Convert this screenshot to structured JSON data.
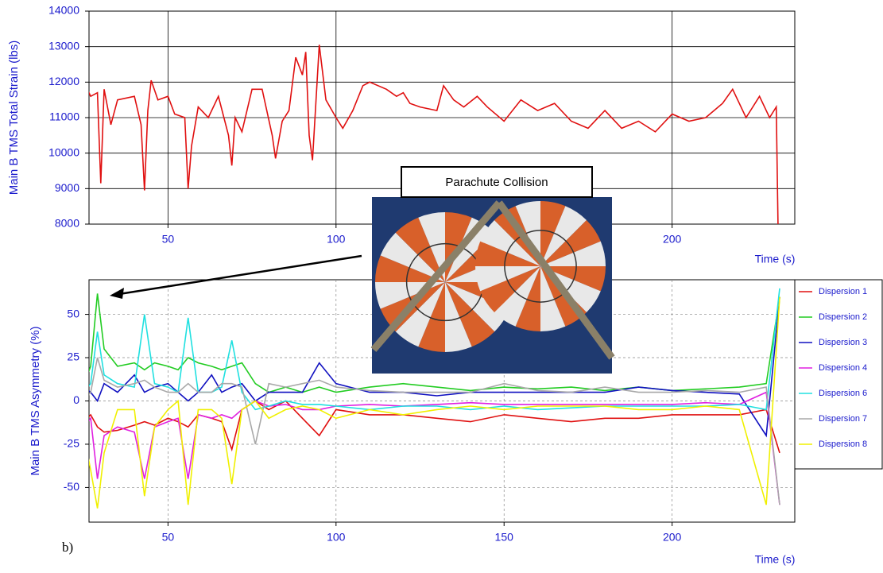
{
  "chart_data": [
    {
      "type": "line",
      "y_label": "Main B TMS Total Strain (lbs)",
      "x_label": "Time (s)",
      "xlim": [
        26.5,
        236.5
      ],
      "xticks": [
        50,
        100,
        200
      ],
      "ylim": [
        8000,
        14000
      ],
      "yticks": [
        8000,
        9000,
        10000,
        11000,
        12000,
        13000,
        14000
      ],
      "grid": true,
      "x": [
        25,
        27,
        29,
        30,
        31,
        33,
        35,
        40,
        42,
        43,
        44,
        45,
        47,
        50,
        52,
        55,
        56,
        57,
        59,
        62,
        65,
        68,
        69,
        70,
        72,
        75,
        78,
        81,
        82,
        84,
        86,
        88,
        90,
        91,
        92,
        93,
        95,
        97,
        100,
        102,
        105,
        108,
        110,
        115,
        118,
        120,
        122,
        125,
        130,
        132,
        135,
        138,
        142,
        145,
        150,
        155,
        160,
        165,
        170,
        175,
        180,
        185,
        190,
        195,
        200,
        205,
        210,
        215,
        218,
        222,
        226,
        229,
        231,
        231.5
      ],
      "series": [
        {
          "name": "Main B TMS Total Strain",
          "color": "#e01010",
          "values": [
            12000,
            11600,
            11700,
            9150,
            11800,
            10800,
            11500,
            11600,
            10800,
            8950,
            11200,
            12050,
            11500,
            11600,
            11100,
            11000,
            9000,
            10200,
            11300,
            11000,
            11600,
            10500,
            9650,
            11000,
            10600,
            11800,
            11800,
            10500,
            9850,
            10900,
            11200,
            12700,
            12200,
            12850,
            10500,
            9800,
            13050,
            11500,
            11000,
            10700,
            11200,
            11900,
            12000,
            11800,
            11600,
            11700,
            11400,
            11300,
            11200,
            11900,
            11500,
            11300,
            11600,
            11300,
            10900,
            11500,
            11200,
            11400,
            10900,
            10700,
            11200,
            10700,
            10900,
            10600,
            11100,
            10900,
            11000,
            11400,
            11800,
            11000,
            11600,
            11000,
            11300,
            8000
          ]
        }
      ]
    },
    {
      "type": "line",
      "y_label": "Main B TMS Asymmetry (%)",
      "x_label": "Time (s)",
      "annotations": [
        "Parachute Collision",
        "b)"
      ],
      "xlim": [
        26.5,
        236.5
      ],
      "xticks": [
        50,
        100,
        150,
        200
      ],
      "ylim": [
        -70,
        70
      ],
      "yticks": [
        -50,
        -25,
        0,
        25,
        50
      ],
      "grid": true,
      "x": [
        25,
        27,
        29,
        31,
        35,
        40,
        43,
        46,
        50,
        53,
        56,
        59,
        63,
        66,
        69,
        72,
        76,
        80,
        85,
        90,
        95,
        100,
        110,
        120,
        130,
        140,
        150,
        160,
        170,
        180,
        190,
        200,
        210,
        220,
        228,
        232
      ],
      "series": [
        {
          "name": "Dispersion 1",
          "color": "#e01010",
          "values": [
            -12,
            -8,
            -15,
            -18,
            -17,
            -14,
            -12,
            -14,
            -10,
            -12,
            -15,
            -8,
            -10,
            -12,
            -28,
            -5,
            0,
            -5,
            0,
            -10,
            -20,
            -5,
            -8,
            -8,
            -10,
            -12,
            -8,
            -10,
            -12,
            -10,
            -10,
            -8,
            -8,
            -8,
            -5,
            -30
          ]
        },
        {
          "name": "Dispersion 2",
          "color": "#22cc22",
          "values": [
            10,
            20,
            62,
            30,
            20,
            22,
            18,
            22,
            20,
            18,
            25,
            22,
            20,
            18,
            20,
            22,
            10,
            5,
            8,
            5,
            8,
            5,
            8,
            10,
            8,
            6,
            8,
            7,
            8,
            6,
            8,
            6,
            7,
            8,
            10,
            60
          ]
        },
        {
          "name": "Dispersion 3",
          "color": "#1010c0",
          "values": [
            8,
            5,
            0,
            10,
            5,
            15,
            5,
            8,
            10,
            5,
            0,
            5,
            15,
            5,
            8,
            10,
            0,
            5,
            5,
            5,
            22,
            10,
            5,
            5,
            3,
            5,
            5,
            5,
            5,
            5,
            8,
            6,
            5,
            4,
            -20,
            60
          ]
        },
        {
          "name": "Dispersion 4",
          "color": "#e020e0",
          "values": [
            -15,
            -10,
            -45,
            -20,
            -15,
            -18,
            -45,
            -15,
            -12,
            -10,
            -45,
            -8,
            -10,
            -8,
            -10,
            -5,
            0,
            -3,
            -2,
            -5,
            -5,
            -3,
            -2,
            -3,
            -2,
            -1,
            -2,
            -2,
            -2,
            -2,
            -2,
            -2,
            -1,
            -2,
            5,
            -60
          ]
        },
        {
          "name": "Dispersion 6",
          "color": "#20e0e0",
          "values": [
            5,
            10,
            40,
            15,
            10,
            8,
            50,
            10,
            8,
            5,
            48,
            5,
            5,
            8,
            35,
            5,
            -5,
            -3,
            0,
            -2,
            -2,
            -3,
            -5,
            -3,
            -3,
            -5,
            -3,
            -5,
            -4,
            -3,
            -3,
            -3,
            -3,
            -2,
            -5,
            65
          ]
        },
        {
          "name": "Dispersion 7",
          "color": "#a8a8a8",
          "values": [
            0,
            5,
            25,
            12,
            8,
            10,
            12,
            8,
            5,
            5,
            10,
            5,
            5,
            10,
            10,
            8,
            -25,
            10,
            8,
            10,
            12,
            8,
            6,
            5,
            5,
            5,
            10,
            6,
            5,
            8,
            5,
            5,
            6,
            5,
            8,
            -60
          ]
        },
        {
          "name": "Dispersion 8",
          "color": "#f0f000",
          "values": [
            -20,
            -40,
            -62,
            -30,
            -5,
            -5,
            -55,
            -15,
            -5,
            0,
            -60,
            -5,
            -5,
            -10,
            -48,
            -5,
            0,
            -10,
            -5,
            -3,
            -5,
            -10,
            -5,
            -8,
            -5,
            -3,
            -5,
            -3,
            -3,
            -3,
            -5,
            -5,
            -3,
            -5,
            -60,
            60
          ]
        }
      ]
    }
  ]
}
